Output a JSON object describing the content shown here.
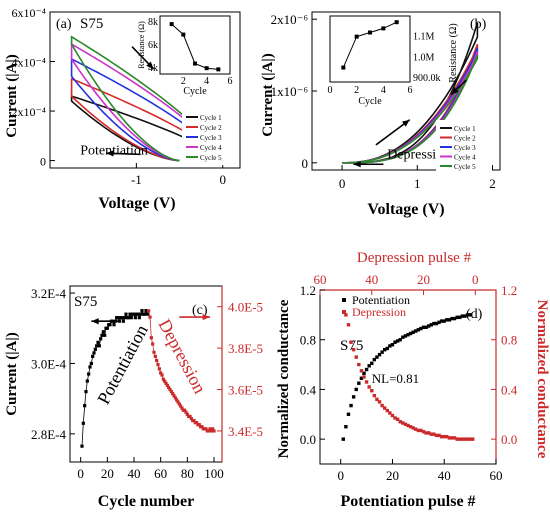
{
  "chart_data": [
    {
      "panel": "a",
      "type": "line",
      "panel_label": "(a)",
      "sample_label": "S75",
      "xlabel": "Voltage (V)",
      "ylabel": "Current (|A|)",
      "xlim": [
        -2.0,
        0.2
      ],
      "ylim": [
        -3e-05,
        0.0006
      ],
      "x_ticks": [
        -1,
        0
      ],
      "y_ticks": [
        {
          "value": 0,
          "label": "0"
        },
        {
          "value": 0.0002,
          "label": "2x10⁻⁴"
        },
        {
          "value": 0.0004,
          "label": "4x10⁻⁴"
        },
        {
          "value": 0.0006,
          "label": "6x10⁻⁴"
        }
      ],
      "annotation": "Potentiation",
      "legend": [
        "Cycle 1",
        "Cycle 2",
        "Cycle 3",
        "Cycle 4",
        "Cycle 5"
      ],
      "colors": [
        "#111111",
        "#d62b2b",
        "#2233dd",
        "#cc33cc",
        "#2a8a2a"
      ],
      "series": [
        {
          "name": "Cycle 1",
          "sweep_out_peak": 0.00024,
          "sweep_back_peak": 0.00026
        },
        {
          "name": "Cycle 2",
          "sweep_out_peak": 0.00026,
          "sweep_back_peak": 0.00033
        },
        {
          "name": "Cycle 3",
          "sweep_out_peak": 0.00034,
          "sweep_back_peak": 0.00041
        },
        {
          "name": "Cycle 4",
          "sweep_out_peak": 0.00041,
          "sweep_back_peak": 0.00047
        },
        {
          "name": "Cycle 5",
          "sweep_out_peak": 0.00047,
          "sweep_back_peak": 0.0005
        }
      ],
      "inset": {
        "xlabel": "Cycle",
        "ylabel": "Resistance (Ω)",
        "xlim": [
          0,
          6
        ],
        "ylim": [
          3500,
          8500
        ],
        "x_ticks": [
          2,
          4,
          6
        ],
        "y_ticks": [
          {
            "value": 4000,
            "label": "4k"
          },
          {
            "value": 6000,
            "label": "6k"
          },
          {
            "value": 8000,
            "label": "8k"
          }
        ],
        "x": [
          1,
          2,
          3,
          4,
          5
        ],
        "y": [
          7800,
          6900,
          4400,
          4000,
          3900
        ]
      }
    },
    {
      "panel": "b",
      "type": "line",
      "panel_label": "(b)",
      "sample_label": "S75",
      "xlabel": "Voltage (V)",
      "ylabel": "Current (|A|)",
      "xlim": [
        -0.4,
        2.1
      ],
      "ylim": [
        -1e-07,
        2.1e-06
      ],
      "x_ticks": [
        0,
        1,
        2
      ],
      "y_ticks": [
        {
          "value": 0,
          "label": "0"
        },
        {
          "value": 1e-06,
          "label": "1x10⁻⁶"
        },
        {
          "value": 2e-06,
          "label": "2x10⁻⁶"
        }
      ],
      "annotation": "Depression",
      "legend": [
        "Cycle 1",
        "Cycle 2",
        "Cycle 3",
        "Cycle 4",
        "Cycle 5"
      ],
      "colors": [
        "#111111",
        "#d62b2b",
        "#2233dd",
        "#cc33cc",
        "#2a8a2a"
      ],
      "series": [
        {
          "name": "Cycle 1",
          "sweep_out_peak": 1.95e-06,
          "sweep_back_peak": 1.75e-06
        },
        {
          "name": "Cycle 2",
          "sweep_out_peak": 1.65e-06,
          "sweep_back_peak": 1.6e-06
        },
        {
          "name": "Cycle 3",
          "sweep_out_peak": 1.6e-06,
          "sweep_back_peak": 1.55e-06
        },
        {
          "name": "Cycle 4",
          "sweep_out_peak": 1.55e-06,
          "sweep_back_peak": 1.5e-06
        },
        {
          "name": "Cycle 5",
          "sweep_out_peak": 1.5e-06,
          "sweep_back_peak": 1.45e-06
        }
      ],
      "inset": {
        "xlabel": "Cycle",
        "ylabel": "Resistance (Ω)",
        "xlim": [
          0,
          6
        ],
        "ylim": [
          880000,
          1200000
        ],
        "x_ticks": [
          0,
          2,
          4,
          6
        ],
        "y_ticks": [
          {
            "value": 900000,
            "label": "900.0k"
          },
          {
            "value": 1000000,
            "label": "1.0M"
          },
          {
            "value": 1100000,
            "label": "1.1M"
          }
        ],
        "x": [
          1,
          2,
          3,
          4,
          5
        ],
        "y": [
          950000,
          1100000,
          1120000,
          1140000,
          1170000
        ]
      }
    },
    {
      "panel": "c",
      "type": "scatter",
      "panel_label": "(c)",
      "sample_label": "S75",
      "xlabel": "Cycle number",
      "ylabel": "Current (|A|)",
      "xlim": [
        -8,
        106
      ],
      "ylim": [
        0.000272,
        0.000322
      ],
      "x_ticks": [
        0,
        20,
        40,
        60,
        80,
        100
      ],
      "y_ticks": [
        {
          "value": 0.00028,
          "label": "2.8E-4"
        },
        {
          "value": 0.0003,
          "label": "3.0E-4"
        },
        {
          "value": 0.00032,
          "label": "3.2E-4"
        }
      ],
      "y2lim": [
        3.25e-05,
        4.1e-05
      ],
      "y2_ticks": [
        {
          "value": 3.4e-05,
          "label": "3.4E-5"
        },
        {
          "value": 3.6e-05,
          "label": "3.6E-5"
        },
        {
          "value": 3.8e-05,
          "label": "3.8E-5"
        },
        {
          "value": 4e-05,
          "label": "4.0E-5"
        }
      ],
      "annotations": [
        "Potentiation",
        "Depression"
      ],
      "series": [
        {
          "name": "",
          "axis": "left",
          "color": "#000000",
          "x": [
            1,
            2,
            3,
            4,
            5,
            6,
            7,
            8,
            9,
            10,
            11,
            12,
            13,
            14,
            15,
            16,
            17,
            18,
            19,
            20,
            21,
            22,
            23,
            24,
            25,
            26,
            27,
            28,
            29,
            30,
            31,
            32,
            33,
            34,
            35,
            36,
            37,
            38,
            39,
            40,
            41,
            42,
            43,
            44,
            45,
            46,
            47,
            48,
            49,
            50
          ],
          "y": [
            0.0002765,
            0.000283,
            0.000288,
            0.000292,
            0.000295,
            0.000297,
            0.000299,
            0.0003,
            0.000302,
            0.000303,
            0.000304,
            0.000305,
            0.000306,
            0.000305,
            0.000307,
            0.000308,
            0.000309,
            0.000308,
            0.00031,
            0.00031,
            0.000311,
            0.000311,
            0.000312,
            0.000312,
            0.000311,
            0.000312,
            0.000313,
            0.000313,
            0.000312,
            0.000313,
            0.000313,
            0.000312,
            0.000313,
            0.000314,
            0.000313,
            0.000313,
            0.000314,
            0.000313,
            0.000314,
            0.000314,
            0.000313,
            0.000314,
            0.000314,
            0.000313,
            0.000314,
            0.000315,
            0.000314,
            0.000314,
            0.000315,
            0.000314
          ]
        },
        {
          "name": "",
          "axis": "right",
          "color": "#cc2a2a",
          "x": [
            51,
            52,
            53,
            54,
            55,
            56,
            57,
            58,
            59,
            60,
            61,
            62,
            63,
            64,
            65,
            66,
            67,
            68,
            69,
            70,
            71,
            72,
            73,
            74,
            75,
            76,
            77,
            78,
            79,
            80,
            81,
            82,
            83,
            84,
            85,
            86,
            87,
            88,
            89,
            90,
            91,
            92,
            93,
            94,
            95,
            96,
            97,
            98,
            99,
            100
          ],
          "y": [
            3.98e-05,
            3.95e-05,
            3.85e-05,
            3.82e-05,
            3.78e-05,
            3.76e-05,
            3.74e-05,
            3.72e-05,
            3.7e-05,
            3.68e-05,
            3.67e-05,
            3.65e-05,
            3.64e-05,
            3.63e-05,
            3.62e-05,
            3.61e-05,
            3.6e-05,
            3.59e-05,
            3.58e-05,
            3.57e-05,
            3.56e-05,
            3.55e-05,
            3.54e-05,
            3.53e-05,
            3.52e-05,
            3.51e-05,
            3.5e-05,
            3.5e-05,
            3.49e-05,
            3.48e-05,
            3.47e-05,
            3.47e-05,
            3.46e-05,
            3.45e-05,
            3.45e-05,
            3.44e-05,
            3.44e-05,
            3.43e-05,
            3.43e-05,
            3.42e-05,
            3.42e-05,
            3.41e-05,
            3.41e-05,
            3.41e-05,
            3.4e-05,
            3.4e-05,
            3.41e-05,
            3.4e-05,
            3.41e-05,
            3.4e-05
          ]
        }
      ]
    },
    {
      "panel": "d",
      "type": "scatter",
      "panel_label": "(d)",
      "sample_label": "S75",
      "xlabel": "Potentiation pulse #",
      "ylabel": "Normalized conductance",
      "x2label": "Depression pulse #",
      "y2label": "Normalized conductance",
      "xlim": [
        -8,
        60
      ],
      "ylim": [
        -0.2,
        1.2
      ],
      "x_ticks": [
        0,
        20,
        40,
        60
      ],
      "y_ticks": [
        {
          "value": 0.0,
          "label": "0.0"
        },
        {
          "value": 0.4,
          "label": "0.4"
        },
        {
          "value": 0.8,
          "label": "0.8"
        },
        {
          "value": 1.2,
          "label": "1.2"
        }
      ],
      "x2_ticks": [
        {
          "value": 60,
          "label": "60"
        },
        {
          "value": 40,
          "label": "40"
        },
        {
          "value": 20,
          "label": "20"
        },
        {
          "value": 0,
          "label": "0"
        }
      ],
      "y2_ticks": [
        {
          "value": 0.0,
          "label": "0.0"
        },
        {
          "value": 0.4,
          "label": "0.4"
        },
        {
          "value": 0.8,
          "label": "0.8"
        },
        {
          "value": 1.2,
          "label": "1.2"
        }
      ],
      "annotation": "NL=0.81",
      "legend": [
        "Potentiation",
        "Depression"
      ],
      "series": [
        {
          "name": "Potentiation",
          "color": "#000000",
          "x": [
            1,
            2,
            3,
            4,
            5,
            6,
            7,
            8,
            9,
            10,
            11,
            12,
            13,
            14,
            15,
            16,
            17,
            18,
            19,
            20,
            21,
            22,
            23,
            24,
            25,
            26,
            27,
            28,
            29,
            30,
            31,
            32,
            33,
            34,
            35,
            36,
            37,
            38,
            39,
            40,
            41,
            42,
            43,
            44,
            45,
            46,
            47,
            48,
            49,
            50
          ],
          "y": [
            0.0,
            0.1,
            0.2,
            0.27,
            0.34,
            0.4,
            0.45,
            0.49,
            0.53,
            0.56,
            0.59,
            0.61,
            0.64,
            0.66,
            0.68,
            0.7,
            0.72,
            0.73,
            0.75,
            0.76,
            0.78,
            0.79,
            0.8,
            0.82,
            0.83,
            0.84,
            0.85,
            0.86,
            0.87,
            0.88,
            0.89,
            0.9,
            0.9,
            0.91,
            0.92,
            0.93,
            0.93,
            0.94,
            0.95,
            0.95,
            0.96,
            0.96,
            0.97,
            0.97,
            0.98,
            0.98,
            0.99,
            0.99,
            1.0,
            1.0
          ]
        },
        {
          "name": "Depression",
          "color": "#cc2a2a",
          "x2": [
            50,
            49,
            48,
            47,
            46,
            45,
            44,
            43,
            42,
            41,
            40,
            39,
            38,
            37,
            36,
            35,
            34,
            33,
            32,
            31,
            30,
            29,
            28,
            27,
            26,
            25,
            24,
            23,
            22,
            21,
            20,
            19,
            18,
            17,
            16,
            15,
            14,
            13,
            12,
            11,
            10,
            9,
            8,
            7,
            6,
            5,
            4,
            3,
            2,
            1
          ],
          "y": [
            1.0,
            0.92,
            0.78,
            0.72,
            0.66,
            0.6,
            0.55,
            0.5,
            0.46,
            0.42,
            0.39,
            0.35,
            0.32,
            0.3,
            0.27,
            0.25,
            0.23,
            0.21,
            0.19,
            0.17,
            0.16,
            0.14,
            0.13,
            0.12,
            0.11,
            0.1,
            0.09,
            0.08,
            0.07,
            0.07,
            0.06,
            0.05,
            0.05,
            0.04,
            0.04,
            0.03,
            0.03,
            0.02,
            0.02,
            0.02,
            0.01,
            0.01,
            0.01,
            0.0,
            0.0,
            0.0,
            0.0,
            0.0,
            0.0,
            0.0
          ]
        }
      ]
    }
  ]
}
